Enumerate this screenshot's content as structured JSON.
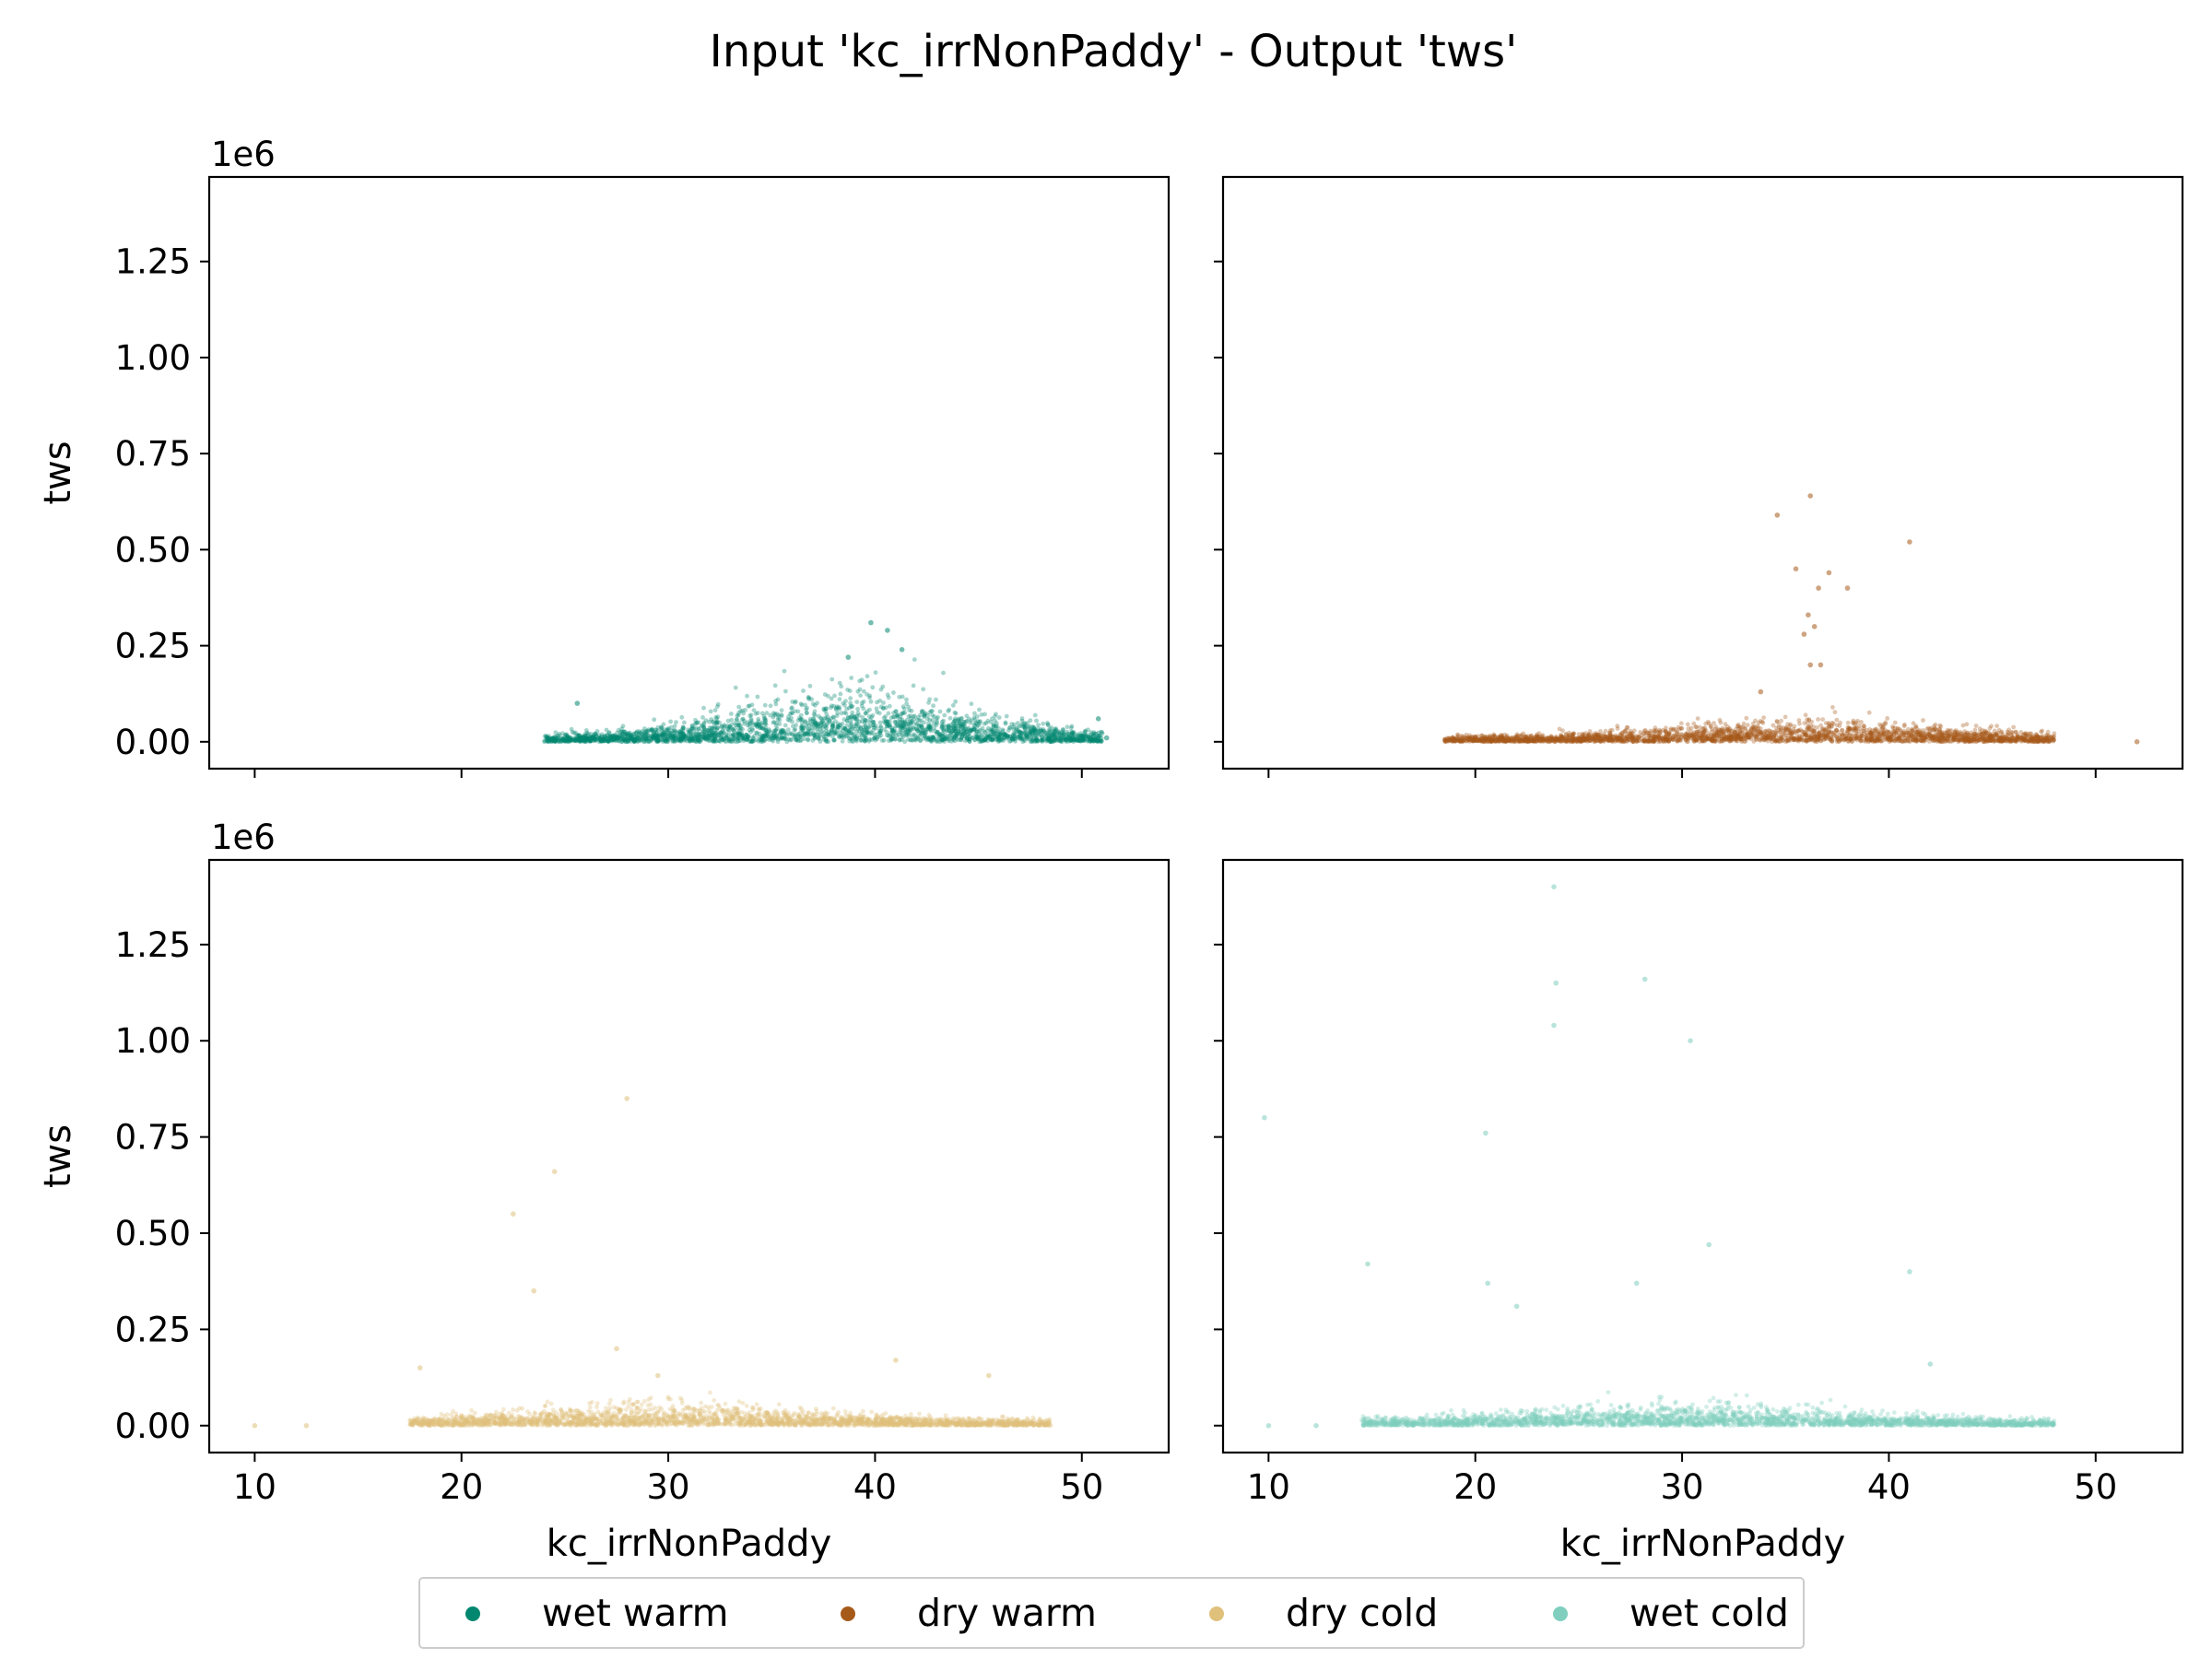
{
  "chart_data": {
    "type": "scatter",
    "title": "Input 'kc_irrNonPaddy' - Output 'tws'",
    "xlabel": "kc_irrNonPaddy",
    "ylabel": "tws",
    "offset_text": "1e6",
    "xlim": [
      7.8,
      54.2
    ],
    "ylim": [
      -0.07,
      1.47
    ],
    "x_ticks": [
      10,
      20,
      30,
      40,
      50
    ],
    "y_ticks": [
      0.0,
      0.25,
      0.5,
      0.75,
      1.0,
      1.25
    ],
    "legend_placement": "bottom-center",
    "panels": [
      {
        "series": "wet warm",
        "color": "#01876f",
        "x_core": [
          24,
          51
        ],
        "x_peak": 39,
        "outliers": [
          [
            39.8,
            0.31
          ],
          [
            40.6,
            0.29
          ],
          [
            38.7,
            0.22
          ],
          [
            41.3,
            0.24
          ],
          [
            25.6,
            0.1
          ],
          [
            50.8,
            0.06
          ],
          [
            51.2,
            0.01
          ]
        ]
      },
      {
        "series": "dry warm",
        "color": "#a65a1a",
        "x_core": [
          18.5,
          48
        ],
        "x_peak": 36,
        "outliers": [
          [
            36.2,
            0.64
          ],
          [
            34.6,
            0.59
          ],
          [
            41.0,
            0.52
          ],
          [
            37.1,
            0.44
          ],
          [
            35.5,
            0.45
          ],
          [
            36.6,
            0.4
          ],
          [
            38.0,
            0.4
          ],
          [
            36.1,
            0.33
          ],
          [
            36.4,
            0.3
          ],
          [
            35.9,
            0.28
          ],
          [
            36.7,
            0.2
          ],
          [
            36.2,
            0.2
          ],
          [
            33.8,
            0.13
          ],
          [
            52.0,
            0.0
          ]
        ]
      },
      {
        "series": "dry cold",
        "color": "#dfc17c",
        "x_core": [
          17.5,
          48.5
        ],
        "x_peak": 30,
        "outliers": [
          [
            28.0,
            0.85
          ],
          [
            24.5,
            0.66
          ],
          [
            22.5,
            0.55
          ],
          [
            23.5,
            0.35
          ],
          [
            27.5,
            0.2
          ],
          [
            29.5,
            0.13
          ],
          [
            41.0,
            0.17
          ],
          [
            45.5,
            0.13
          ],
          [
            18.0,
            0.15
          ],
          [
            10.0,
            0.0
          ],
          [
            12.5,
            0.0
          ]
        ]
      },
      {
        "series": "wet cold",
        "color": "#7fcebe",
        "x_core": [
          14.5,
          48
        ],
        "x_peak": 30,
        "outliers": [
          [
            23.8,
            1.4
          ],
          [
            23.9,
            1.15
          ],
          [
            28.2,
            1.16
          ],
          [
            23.8,
            1.04
          ],
          [
            30.4,
            1.0
          ],
          [
            9.8,
            0.8
          ],
          [
            20.5,
            0.76
          ],
          [
            31.3,
            0.47
          ],
          [
            14.8,
            0.42
          ],
          [
            41.0,
            0.4
          ],
          [
            20.6,
            0.37
          ],
          [
            22.0,
            0.31
          ],
          [
            27.8,
            0.37
          ],
          [
            42.0,
            0.16
          ],
          [
            10.0,
            0.0
          ],
          [
            12.3,
            0.0
          ]
        ]
      }
    ]
  },
  "legend": {
    "items": [
      {
        "label": "wet warm",
        "color": "#01876f"
      },
      {
        "label": "dry warm",
        "color": "#a65a1a"
      },
      {
        "label": "dry cold",
        "color": "#dfc17c"
      },
      {
        "label": "wet cold",
        "color": "#7fcebe"
      }
    ]
  }
}
